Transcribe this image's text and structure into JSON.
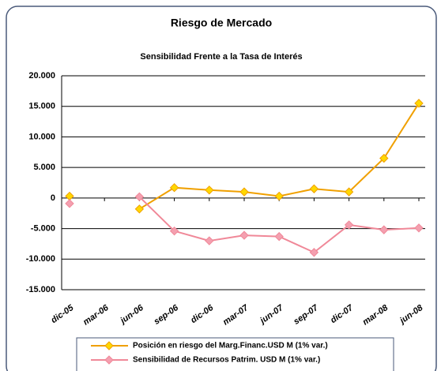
{
  "chart_data": {
    "type": "line",
    "title": "Riesgo de Mercado",
    "subtitle": "Sensibilidad Frente a la Tasa de Interés",
    "categories": [
      "dic-05",
      "mar-06",
      "jun-06",
      "sep-06",
      "dic-06",
      "mar-07",
      "jun-07",
      "sep-07",
      "dic-07",
      "mar-08",
      "jun-08"
    ],
    "series": [
      {
        "name": "Posición en riesgo del Marg.Financ.USD M (1% var.)",
        "color": "#f0a000",
        "marker_color": "#ffd800",
        "values": [
          300,
          null,
          -1800,
          1700,
          1300,
          1000,
          300,
          1500,
          1000,
          6500,
          15500
        ]
      },
      {
        "name": "Sensibilidad de Recursos Patrim. USD M (1% var.)",
        "color": "#f08898",
        "marker_color": "#f4a0b0",
        "values": [
          -900,
          null,
          200,
          -5400,
          -7000,
          -6100,
          -6300,
          -8900,
          -4400,
          -5200,
          -4900
        ]
      }
    ],
    "ylim": [
      -15000,
      20000
    ],
    "yticks": [
      {
        "value": 20000,
        "label": "20.000"
      },
      {
        "value": 15000,
        "label": "15.000"
      },
      {
        "value": 10000,
        "label": "10.000"
      },
      {
        "value": 5000,
        "label": "5.000"
      },
      0,
      {
        "value": -5000,
        "label": "-5.000"
      },
      {
        "value": -10000,
        "label": "-10.000"
      },
      {
        "value": -15000,
        "label": "-15.000"
      }
    ],
    "grid": true,
    "legend": "bottom"
  }
}
